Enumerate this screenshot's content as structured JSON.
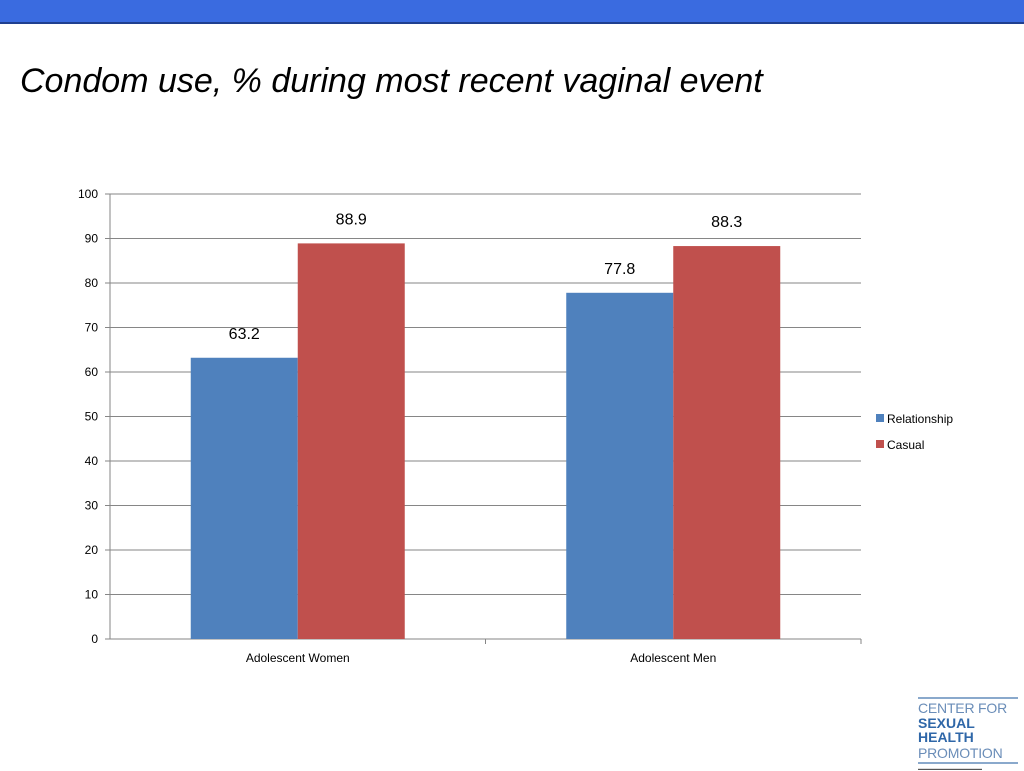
{
  "slide": {
    "title": "Condom use, % during most recent vaginal event"
  },
  "colors": {
    "top_bar": "#3a6be0",
    "relationship": "#4f81bd",
    "casual": "#c0504d",
    "gridline": "#868686"
  },
  "logo": {
    "line1": "CENTER FOR",
    "line2": "SEXUAL HEALTH",
    "line3": "PROMOTION"
  },
  "chart_data": {
    "type": "bar",
    "categories": [
      "Adolescent Women",
      "Adolescent Men"
    ],
    "series": [
      {
        "name": "Relationship",
        "values": [
          63.2,
          77.8
        ],
        "color": "#4f81bd"
      },
      {
        "name": "Casual",
        "values": [
          88.9,
          88.3
        ],
        "color": "#c0504d"
      }
    ],
    "data_labels": [
      [
        "63.2",
        "77.8"
      ],
      [
        "88.9",
        "88.3"
      ]
    ],
    "ylim": [
      0,
      100
    ],
    "yticks": [
      0,
      10,
      20,
      30,
      40,
      50,
      60,
      70,
      80,
      90,
      100
    ],
    "grid": true,
    "legend_position": "right",
    "title": "",
    "xlabel": "",
    "ylabel": ""
  }
}
